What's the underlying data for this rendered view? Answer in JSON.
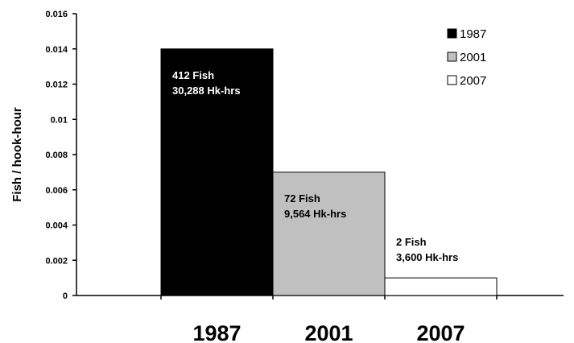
{
  "chart_data": {
    "type": "bar",
    "title": "",
    "xlabel": "",
    "ylabel": "Fish / hook-hour",
    "ylim": [
      0,
      0.016
    ],
    "y_ticks": [
      "0",
      "0.002",
      "0.004",
      "0.006",
      "0.008",
      "0.01",
      "0.012",
      "0.014",
      "0.016"
    ],
    "categories": [
      "1987",
      "2001",
      "2007"
    ],
    "values": [
      0.014,
      0.007,
      0.001
    ],
    "colors": [
      "#000000",
      "#c0c0c0",
      "#ffffff"
    ],
    "annotations": [
      [
        "412 Fish",
        "30,288 Hk-hrs"
      ],
      [
        "72 Fish",
        "9,564 Hk-hrs"
      ],
      [
        "2 Fish",
        "3,600 Hk-hrs"
      ]
    ],
    "legend": {
      "placement": "top-right",
      "entries": [
        "1987",
        "2001",
        "2007"
      ]
    },
    "grid": false
  }
}
